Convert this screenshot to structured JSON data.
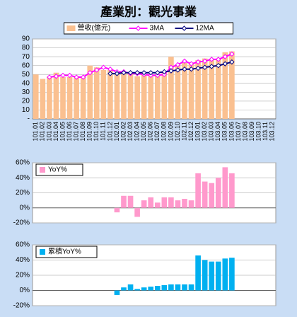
{
  "chart_data": [
    {
      "type": "combo",
      "title": "產業別：觀光事業",
      "legend": "top",
      "grid": true,
      "categories": [
        "101.01",
        "101.02",
        "101.03",
        "101.04",
        "101.05",
        "101.06",
        "101.07",
        "101.08",
        "101.09",
        "101.10",
        "101.11",
        "101.12",
        "102.01",
        "102.02",
        "102.03",
        "102.04",
        "102.05",
        "102.06",
        "102.07",
        "102.08",
        "102.09",
        "102.10",
        "102.11",
        "102.12",
        "103.01",
        "103.02",
        "103.03",
        "103.04",
        "103.05",
        "103.06",
        "103.07",
        "103.08",
        "103.09",
        "103.10",
        "103.11",
        "103.12"
      ],
      "ylim": [
        0,
        90
      ],
      "yticks": [
        {
          "value": 0,
          "label": "-"
        },
        10,
        20,
        30,
        40,
        50,
        60,
        70,
        80,
        90
      ],
      "series": [
        {
          "name": "營收(億元)",
          "type": "bar",
          "color": "#fac090",
          "values": [
            50,
            45,
            47,
            52,
            47,
            47,
            48,
            47,
            60,
            58,
            55,
            55,
            50,
            53,
            51,
            48,
            50,
            48,
            50,
            53,
            70,
            61,
            63,
            62,
            66,
            68,
            66,
            68,
            75,
            76,
            null,
            null,
            null,
            null,
            null,
            null
          ]
        },
        {
          "name": "3MA",
          "type": "line",
          "color": "#ff00ff",
          "values": [
            null,
            null,
            47,
            48,
            49,
            49,
            47,
            47,
            52,
            55,
            58,
            56,
            53,
            53,
            51,
            51,
            50,
            49,
            49,
            50,
            58,
            61,
            65,
            62,
            64,
            65,
            67,
            67,
            70,
            73,
            null,
            null,
            null,
            null,
            null,
            null
          ]
        },
        {
          "name": "12MA",
          "type": "line",
          "color": "#000080",
          "values": [
            null,
            null,
            null,
            null,
            null,
            null,
            null,
            null,
            null,
            null,
            null,
            51,
            51,
            52,
            52,
            52,
            52,
            52,
            52,
            53,
            54,
            55,
            56,
            56,
            57,
            58,
            59,
            60,
            62,
            64,
            null,
            null,
            null,
            null,
            null,
            null
          ]
        }
      ]
    },
    {
      "type": "bar",
      "legend": "upper left",
      "grid": true,
      "ylim": [
        -20,
        60
      ],
      "yticks": [
        {
          "value": -20,
          "label": "-20%"
        },
        {
          "value": 0,
          "label": "0%"
        },
        {
          "value": 20,
          "label": "20%"
        },
        {
          "value": 40,
          "label": "40%"
        },
        {
          "value": 60,
          "label": "60%"
        }
      ],
      "series": [
        {
          "name": "YoY%",
          "color": "#ff99cc",
          "values": [
            null,
            null,
            null,
            null,
            null,
            null,
            null,
            null,
            null,
            null,
            null,
            null,
            -6,
            16,
            16,
            -12,
            10,
            14,
            7,
            14,
            14,
            10,
            12,
            10,
            46,
            35,
            33,
            40,
            54,
            46,
            null,
            null,
            null,
            null,
            null,
            null
          ]
        }
      ]
    },
    {
      "type": "bar",
      "legend": "upper left",
      "grid": true,
      "ylim": [
        -20,
        60
      ],
      "yticks": [
        {
          "value": -20,
          "label": "-20%"
        },
        {
          "value": 0,
          "label": "0%"
        },
        {
          "value": 20,
          "label": "20%"
        },
        {
          "value": 40,
          "label": "40%"
        },
        {
          "value": 60,
          "label": "60%"
        }
      ],
      "series": [
        {
          "name": "累積YoY%",
          "color": "#00b0f0",
          "values": [
            null,
            null,
            null,
            null,
            null,
            null,
            null,
            null,
            null,
            null,
            null,
            null,
            -6,
            4,
            8,
            2,
            4,
            5,
            6,
            7,
            8,
            8,
            8,
            8,
            46,
            40,
            38,
            38,
            42,
            43,
            null,
            null,
            null,
            null,
            null,
            null
          ]
        }
      ]
    }
  ]
}
